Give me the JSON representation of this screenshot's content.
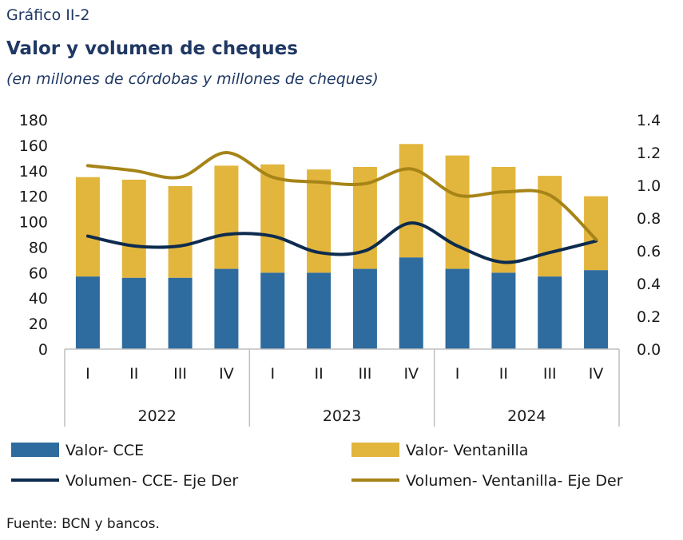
{
  "header": {
    "label": "Gráfico II-2",
    "title": "Valor y volumen de cheques",
    "subtitle": "(en millones de córdobas y millones de cheques)"
  },
  "source": "Fuente: BCN y bancos.",
  "colors": {
    "valor_cce": "#2e6b9e",
    "valor_ventanilla": "#e2b53c",
    "volumen_cce": "#0d2b4e",
    "volumen_ventanilla": "#a68417",
    "axis": "#bfbfbf"
  },
  "chart_data": {
    "type": "bar",
    "stacked": true,
    "categories": [
      "I",
      "II",
      "III",
      "IV",
      "I",
      "II",
      "III",
      "IV",
      "I",
      "II",
      "III",
      "IV"
    ],
    "groups": [
      {
        "label": "2022",
        "count": 4
      },
      {
        "label": "2023",
        "count": 4
      },
      {
        "label": "2024",
        "count": 4
      }
    ],
    "ylim": [
      0,
      180
    ],
    "yticks": [
      "0",
      "20",
      "40",
      "60",
      "80",
      "100",
      "120",
      "140",
      "160",
      "180"
    ],
    "y2lim": [
      0.0,
      1.4
    ],
    "y2ticks": [
      "0.0",
      "0.2",
      "0.4",
      "0.6",
      "0.8",
      "1.0",
      "1.2",
      "1.4"
    ],
    "series": [
      {
        "name": "Valor- CCE",
        "kind": "bar",
        "axis": "left",
        "values": [
          57,
          56,
          56,
          63,
          60,
          60,
          63,
          72,
          63,
          60,
          57,
          62
        ]
      },
      {
        "name": "Valor- Ventanilla",
        "kind": "bar",
        "axis": "left",
        "values": [
          78,
          77,
          72,
          81,
          85,
          81,
          80,
          89,
          89,
          83,
          79,
          58
        ]
      },
      {
        "name": "Volumen- CCE- Eje Der",
        "kind": "line",
        "axis": "right",
        "values": [
          0.69,
          0.63,
          0.63,
          0.7,
          0.69,
          0.59,
          0.6,
          0.77,
          0.63,
          0.53,
          0.59,
          0.66
        ]
      },
      {
        "name": "Volumen- Ventanilla- Eje Der",
        "kind": "line",
        "axis": "right",
        "values": [
          1.12,
          1.09,
          1.05,
          1.2,
          1.05,
          1.02,
          1.01,
          1.1,
          0.94,
          0.96,
          0.94,
          0.67
        ]
      }
    ],
    "legend_position": "bottom",
    "grid": false
  }
}
